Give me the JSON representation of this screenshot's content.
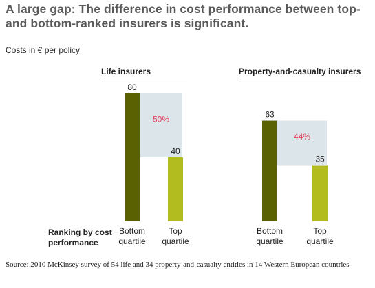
{
  "title": "A large gap: The difference in cost performance between top- and bottom-ranked insurers is significant.",
  "subtitle": "Costs in € per policy",
  "row_label": "Ranking by cost performance",
  "source": "Source: 2010 McKinsey survey of 54 life and 34 property-and-casualty entities in 14 Western European countries",
  "colors": {
    "bottom_bar": "#5a6103",
    "top_bar": "#b3bc1e",
    "gap_fill": "#dce5ea",
    "gap_text": "#e0405a"
  },
  "chart_data": [
    {
      "type": "bar",
      "title": "Life insurers",
      "categories": [
        "Bottom quartile",
        "Top quartile"
      ],
      "values": [
        80,
        40
      ],
      "gap_label": "50%",
      "ylim": [
        0,
        80
      ]
    },
    {
      "type": "bar",
      "title": "Property-and-casualty insurers",
      "categories": [
        "Bottom quartile",
        "Top quartile"
      ],
      "values": [
        63,
        35
      ],
      "gap_label": "44%",
      "ylim": [
        0,
        80
      ]
    }
  ]
}
